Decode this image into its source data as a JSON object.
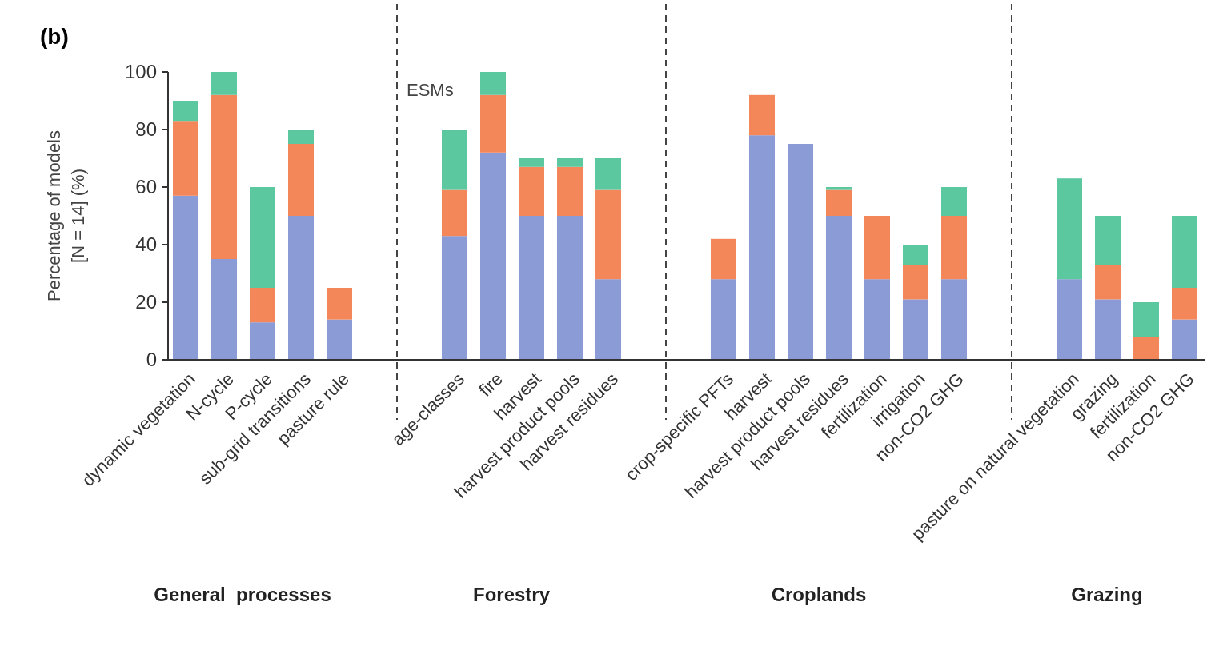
{
  "chart_data": {
    "type": "bar",
    "title": "(b)",
    "ylabel": "Percentage of models\n[N = 14] (%)",
    "stacked": true,
    "categories": [
      "dynamic vegetation",
      "N-cycle",
      "P-cycle",
      "sub-grid transitions",
      "pasture rule",
      null,
      null,
      "age-classes",
      "fire",
      "harvest",
      "harvest product pools",
      "harvest residues",
      null,
      null,
      "crop-specific PFTs",
      "harvest",
      "harvest product pools",
      "harvest residues",
      "fertilization",
      "irrigation",
      "non-CO2 GHG",
      null,
      null,
      "pasture on natural vegetation",
      "grazing",
      "fertilization",
      "non-CO2 GHG"
    ],
    "series": [
      {
        "color": "#8b9bd6",
        "values": [
          57,
          35,
          13,
          50,
          14,
          null,
          null,
          43,
          72,
          50,
          50,
          28,
          null,
          null,
          28,
          78,
          75,
          50,
          28,
          21,
          28,
          null,
          null,
          28,
          21,
          0,
          14
        ]
      },
      {
        "color": "#f4875a",
        "values": [
          26,
          57,
          12,
          25,
          11,
          null,
          null,
          16,
          20,
          17,
          17,
          31,
          null,
          null,
          14,
          14,
          0,
          9,
          22,
          12,
          22,
          null,
          null,
          0,
          12,
          8,
          11
        ]
      },
      {
        "color": "#5cc8a0",
        "values": [
          7,
          8,
          35,
          5,
          0,
          null,
          null,
          21,
          8,
          3,
          3,
          11,
          null,
          null,
          0,
          0,
          0,
          1,
          0,
          7,
          10,
          null,
          null,
          35,
          17,
          12,
          25
        ]
      }
    ],
    "ylim": [
      0,
      100
    ],
    "yticks": [
      0,
      20,
      40,
      60,
      80,
      100
    ],
    "annotations": [
      "ESMs",
      "General  processes",
      "Forestry",
      "Croplands",
      "Grazing"
    ]
  }
}
